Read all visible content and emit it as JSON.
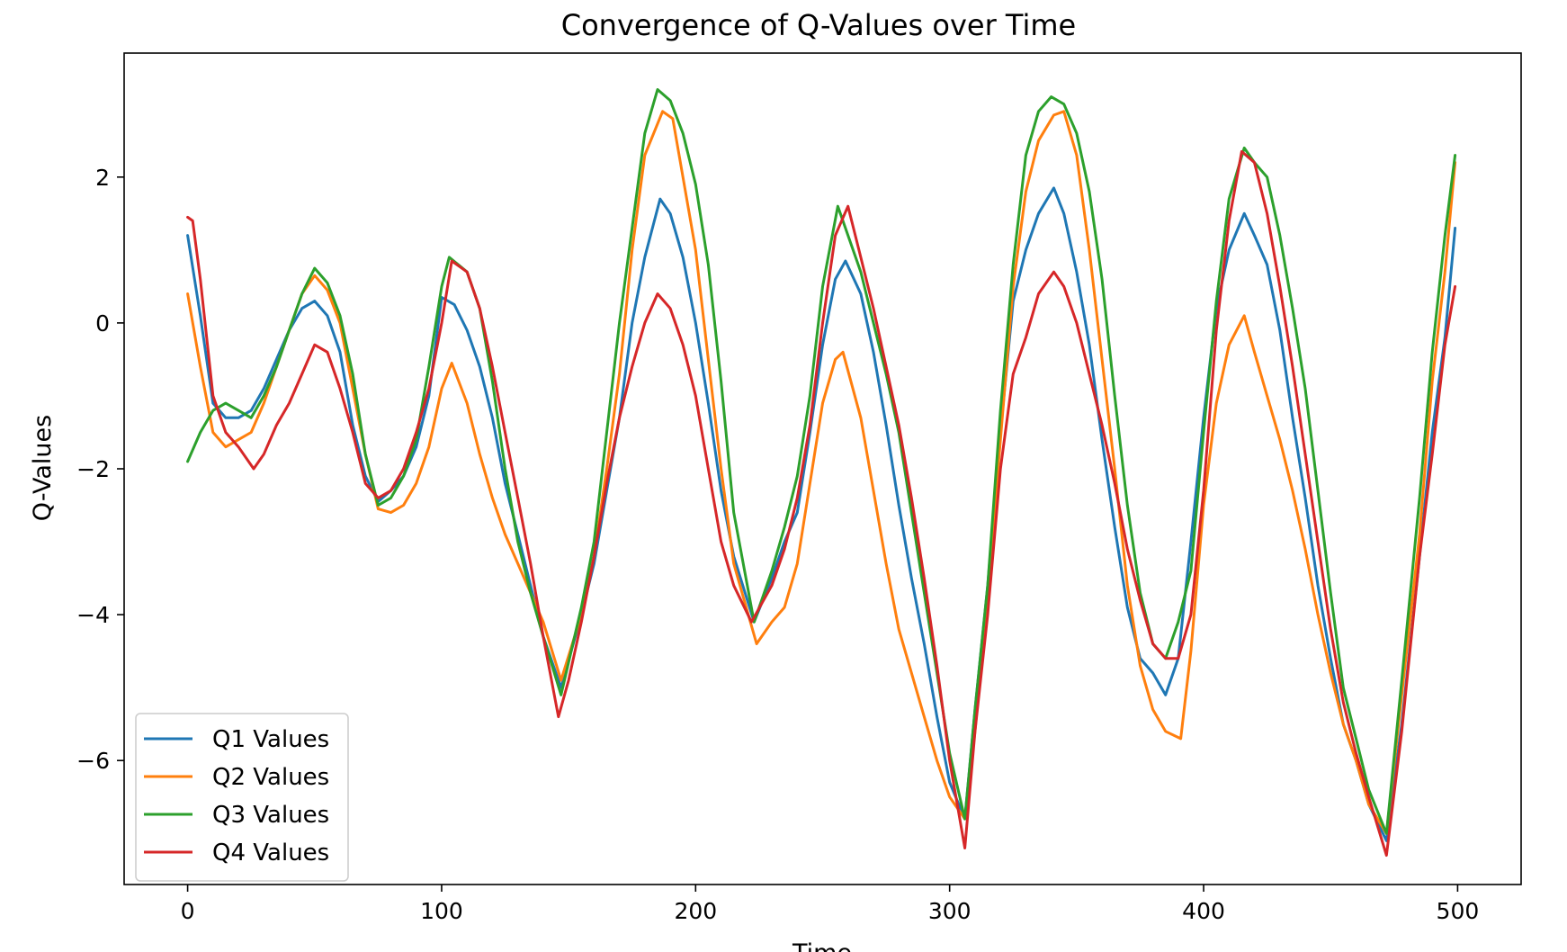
{
  "chart_data": {
    "type": "line",
    "title": "Convergence of Q-Values over Time",
    "xlabel": "Time",
    "ylabel": "Q-Values",
    "xlim": [
      -25,
      525
    ],
    "ylim": [
      -7.7,
      3.7
    ],
    "xticks": [
      0,
      100,
      200,
      300,
      400,
      500
    ],
    "xtick_labels": [
      "0",
      "100",
      "200",
      "300",
      "400",
      "500"
    ],
    "yticks": [
      2,
      0,
      -2,
      -4,
      -6
    ],
    "ytick_labels": [
      "2",
      "0",
      "−2",
      "−4",
      "−6"
    ],
    "grid": false,
    "legend": "lower-left",
    "series": [
      {
        "name": "Q1 Values",
        "color": "#1f77b4",
        "x": [
          0,
          5,
          10,
          15,
          20,
          25,
          30,
          35,
          40,
          45,
          50,
          55,
          60,
          65,
          70,
          75,
          80,
          85,
          90,
          95,
          100,
          105,
          110,
          115,
          120,
          125,
          130,
          135,
          140,
          147,
          155,
          160,
          165,
          170,
          175,
          180,
          186,
          190,
          195,
          200,
          205,
          210,
          215,
          223,
          230,
          235,
          240,
          245,
          250,
          255,
          259,
          265,
          270,
          275,
          280,
          285,
          290,
          295,
          300,
          306,
          310,
          315,
          320,
          325,
          330,
          335,
          341,
          345,
          350,
          355,
          360,
          365,
          370,
          375,
          380,
          385,
          390,
          395,
          400,
          405,
          410,
          416,
          420,
          425,
          430,
          435,
          440,
          445,
          450,
          455,
          460,
          465,
          472,
          478,
          485,
          490,
          495,
          499
        ],
        "values": [
          1.2,
          0.1,
          -1.1,
          -1.3,
          -1.3,
          -1.2,
          -0.9,
          -0.5,
          -0.1,
          0.2,
          0.3,
          0.1,
          -0.4,
          -1.4,
          -2.1,
          -2.45,
          -2.3,
          -2.1,
          -1.7,
          -1.0,
          0.35,
          0.25,
          -0.1,
          -0.6,
          -1.3,
          -2.2,
          -2.9,
          -3.6,
          -4.3,
          -5.0,
          -4.0,
          -3.3,
          -2.3,
          -1.3,
          0.0,
          0.9,
          1.7,
          1.5,
          0.9,
          0.0,
          -1.1,
          -2.3,
          -3.2,
          -4.1,
          -3.5,
          -3.0,
          -2.6,
          -1.5,
          -0.3,
          0.6,
          0.85,
          0.4,
          -0.4,
          -1.4,
          -2.5,
          -3.5,
          -4.4,
          -5.4,
          -6.3,
          -6.8,
          -5.3,
          -3.6,
          -1.5,
          0.3,
          1.0,
          1.5,
          1.85,
          1.5,
          0.7,
          -0.3,
          -1.6,
          -2.8,
          -3.9,
          -4.6,
          -4.8,
          -5.1,
          -4.6,
          -3.0,
          -1.3,
          0.2,
          1.0,
          1.5,
          1.2,
          0.8,
          -0.1,
          -1.3,
          -2.4,
          -3.6,
          -4.6,
          -5.5,
          -6.0,
          -6.6,
          -7.1,
          -5.5,
          -3.2,
          -1.5,
          -0.2,
          1.3
        ]
      },
      {
        "name": "Q2 Values",
        "color": "#ff7f0e",
        "x": [
          0,
          5,
          10,
          15,
          20,
          25,
          30,
          35,
          40,
          45,
          50,
          55,
          60,
          65,
          70,
          75,
          80,
          85,
          90,
          95,
          100,
          104,
          110,
          115,
          120,
          125,
          130,
          135,
          140,
          147,
          155,
          160,
          165,
          170,
          175,
          180,
          187,
          191,
          195,
          200,
          205,
          210,
          215,
          224,
          230,
          235,
          240,
          245,
          250,
          255,
          258,
          265,
          270,
          275,
          280,
          285,
          290,
          295,
          300,
          306,
          310,
          315,
          320,
          325,
          330,
          335,
          341,
          345,
          350,
          355,
          360,
          365,
          370,
          375,
          380,
          385,
          391,
          395,
          400,
          405,
          410,
          416,
          420,
          425,
          430,
          435,
          440,
          445,
          450,
          455,
          460,
          465,
          472,
          478,
          485,
          490,
          495,
          499
        ],
        "values": [
          0.4,
          -0.6,
          -1.5,
          -1.7,
          -1.6,
          -1.5,
          -1.1,
          -0.6,
          -0.1,
          0.4,
          0.65,
          0.45,
          0.0,
          -0.9,
          -1.8,
          -2.55,
          -2.6,
          -2.5,
          -2.2,
          -1.7,
          -0.9,
          -0.55,
          -1.1,
          -1.8,
          -2.4,
          -2.9,
          -3.3,
          -3.7,
          -4.1,
          -4.9,
          -4.0,
          -3.2,
          -2.0,
          -0.7,
          1.0,
          2.3,
          2.9,
          2.8,
          2.0,
          1.0,
          -0.5,
          -2.0,
          -3.3,
          -4.4,
          -4.1,
          -3.9,
          -3.3,
          -2.2,
          -1.1,
          -0.5,
          -0.4,
          -1.3,
          -2.3,
          -3.3,
          -4.2,
          -4.8,
          -5.4,
          -6.0,
          -6.5,
          -6.8,
          -5.6,
          -3.7,
          -1.6,
          0.5,
          1.8,
          2.5,
          2.85,
          2.9,
          2.3,
          1.0,
          -0.5,
          -2.0,
          -3.6,
          -4.7,
          -5.3,
          -5.6,
          -5.7,
          -4.5,
          -2.5,
          -1.1,
          -0.3,
          0.1,
          -0.4,
          -1.0,
          -1.6,
          -2.3,
          -3.1,
          -4.0,
          -4.8,
          -5.5,
          -6.0,
          -6.6,
          -7.0,
          -5.1,
          -2.9,
          -0.8,
          0.7,
          2.2
        ]
      },
      {
        "name": "Q3 Values",
        "color": "#2ca02c",
        "x": [
          0,
          5,
          10,
          15,
          20,
          25,
          30,
          35,
          40,
          45,
          50,
          55,
          60,
          65,
          70,
          75,
          80,
          85,
          90,
          95,
          100,
          103,
          110,
          115,
          120,
          125,
          130,
          135,
          140,
          147,
          155,
          160,
          165,
          170,
          175,
          180,
          185,
          190,
          195,
          200,
          205,
          210,
          215,
          223,
          230,
          235,
          240,
          245,
          250,
          256,
          260,
          265,
          270,
          275,
          280,
          285,
          290,
          295,
          300,
          306,
          310,
          315,
          320,
          325,
          330,
          335,
          340,
          345,
          350,
          355,
          360,
          365,
          370,
          375,
          380,
          385,
          390,
          395,
          400,
          405,
          410,
          416,
          420,
          425,
          430,
          435,
          440,
          445,
          450,
          455,
          460,
          465,
          472,
          478,
          485,
          490,
          495,
          499
        ],
        "values": [
          -1.9,
          -1.5,
          -1.2,
          -1.1,
          -1.2,
          -1.3,
          -1.0,
          -0.6,
          -0.1,
          0.4,
          0.75,
          0.55,
          0.1,
          -0.7,
          -1.8,
          -2.5,
          -2.4,
          -2.1,
          -1.6,
          -0.6,
          0.5,
          0.9,
          0.7,
          0.2,
          -0.8,
          -2.0,
          -3.0,
          -3.7,
          -4.3,
          -5.1,
          -3.9,
          -3.0,
          -1.5,
          0.0,
          1.3,
          2.6,
          3.2,
          3.05,
          2.6,
          1.9,
          0.8,
          -0.8,
          -2.6,
          -4.1,
          -3.4,
          -2.8,
          -2.1,
          -1.0,
          0.5,
          1.6,
          1.2,
          0.7,
          0.0,
          -0.7,
          -1.5,
          -2.6,
          -3.7,
          -4.8,
          -5.9,
          -6.8,
          -5.3,
          -3.6,
          -1.2,
          0.8,
          2.3,
          2.9,
          3.1,
          3.0,
          2.6,
          1.8,
          0.6,
          -1.0,
          -2.5,
          -3.7,
          -4.4,
          -4.6,
          -4.1,
          -3.4,
          -1.5,
          0.3,
          1.7,
          2.4,
          2.2,
          2.0,
          1.2,
          0.2,
          -0.9,
          -2.3,
          -3.7,
          -5.0,
          -5.7,
          -6.4,
          -7.0,
          -4.9,
          -2.4,
          -0.4,
          1.2,
          2.3
        ]
      },
      {
        "name": "Q4 Values",
        "color": "#d62728",
        "x": [
          0,
          2,
          5,
          10,
          15,
          20,
          26,
          30,
          35,
          40,
          45,
          50,
          55,
          60,
          65,
          70,
          75,
          80,
          85,
          90,
          95,
          100,
          104,
          110,
          115,
          120,
          125,
          130,
          135,
          140,
          146,
          150,
          155,
          160,
          165,
          170,
          175,
          180,
          185,
          190,
          195,
          200,
          205,
          210,
          215,
          222,
          230,
          235,
          240,
          245,
          250,
          255,
          260,
          265,
          270,
          275,
          280,
          285,
          290,
          295,
          300,
          306,
          310,
          315,
          320,
          325,
          330,
          335,
          341,
          345,
          350,
          355,
          360,
          365,
          370,
          375,
          380,
          385,
          390,
          395,
          400,
          405,
          410,
          415,
          420,
          425,
          430,
          435,
          440,
          445,
          450,
          455,
          460,
          465,
          472,
          478,
          485,
          490,
          495,
          499
        ],
        "values": [
          1.45,
          1.4,
          0.6,
          -1.0,
          -1.5,
          -1.7,
          -2.0,
          -1.8,
          -1.4,
          -1.1,
          -0.7,
          -0.3,
          -0.4,
          -0.9,
          -1.5,
          -2.2,
          -2.4,
          -2.3,
          -2.0,
          -1.5,
          -0.9,
          0.0,
          0.85,
          0.7,
          0.2,
          -0.6,
          -1.5,
          -2.4,
          -3.3,
          -4.3,
          -5.4,
          -4.9,
          -4.1,
          -3.2,
          -2.2,
          -1.3,
          -0.6,
          0.0,
          0.4,
          0.2,
          -0.3,
          -1.0,
          -2.0,
          -3.0,
          -3.6,
          -4.1,
          -3.6,
          -3.1,
          -2.4,
          -1.4,
          0.0,
          1.2,
          1.6,
          0.9,
          0.2,
          -0.6,
          -1.4,
          -2.4,
          -3.5,
          -4.7,
          -6.0,
          -7.2,
          -5.6,
          -4.0,
          -2.0,
          -0.7,
          -0.2,
          0.4,
          0.7,
          0.5,
          0.0,
          -0.7,
          -1.4,
          -2.2,
          -3.1,
          -3.8,
          -4.4,
          -4.6,
          -4.6,
          -4.0,
          -2.3,
          -0.1,
          1.4,
          2.35,
          2.2,
          1.5,
          0.5,
          -0.6,
          -1.8,
          -3.0,
          -4.2,
          -5.2,
          -5.9,
          -6.5,
          -7.3,
          -5.6,
          -3.2,
          -1.8,
          -0.3,
          0.5
        ]
      }
    ]
  }
}
